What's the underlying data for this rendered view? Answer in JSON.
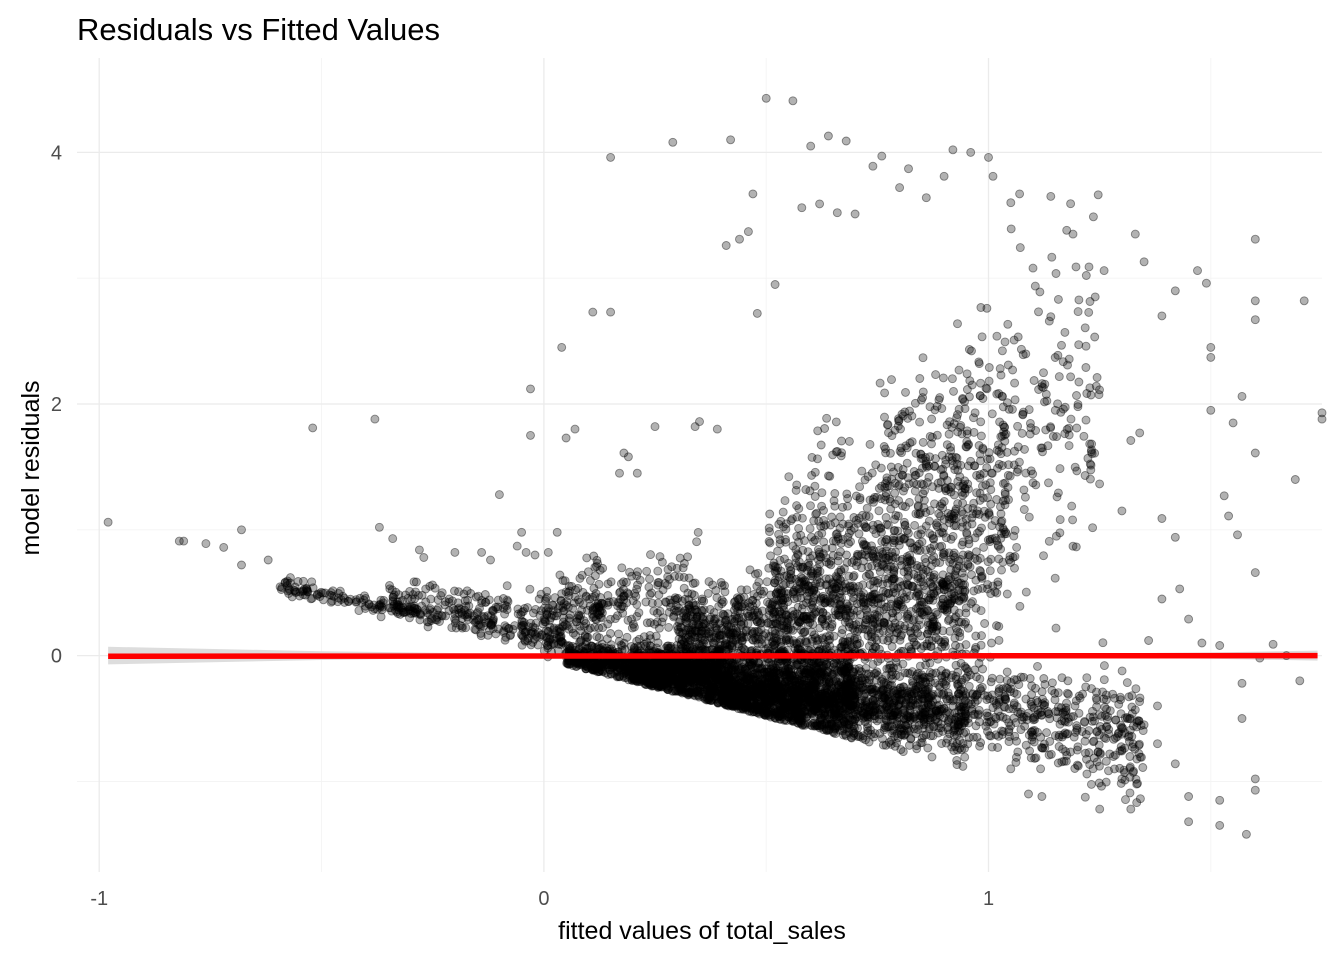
{
  "chart_data": {
    "type": "scatter",
    "title": "Residuals vs Fitted Values",
    "xlabel": "fitted values of total_sales",
    "ylabel": "model residuals",
    "xlim": [
      -1.05,
      1.75
    ],
    "ylim": [
      -1.72,
      4.75
    ],
    "x_ticks": [
      -1,
      0,
      1
    ],
    "y_ticks": [
      0,
      2,
      4
    ],
    "x_tick_labels": [
      "-1",
      "0",
      "1"
    ],
    "y_tick_labels": [
      "0",
      "2",
      "4"
    ],
    "x_minor": [
      -0.5,
      0.5,
      1.5
    ],
    "y_minor": [
      -1,
      1,
      3
    ],
    "grid": true,
    "legend": "none",
    "point_color": "#000000",
    "point_alpha": 0.3,
    "smooth_color": "#ff0000",
    "smooth_band_color": "#d9d9d9",
    "smooth_line": {
      "x": [
        -0.98,
        1.74
      ],
      "y": [
        -0.005,
        0.0
      ]
    },
    "smooth_band": {
      "x": [
        -0.98,
        -0.5,
        0.0,
        0.5,
        1.0,
        1.5,
        1.74
      ],
      "lower": [
        -0.07,
        -0.035,
        -0.01,
        -0.008,
        -0.01,
        -0.025,
        -0.04
      ],
      "upper": [
        0.07,
        0.035,
        0.01,
        0.008,
        0.01,
        0.025,
        0.04
      ]
    },
    "points": [
      [
        -0.98,
        1.06
      ],
      [
        -0.82,
        0.91
      ],
      [
        -0.81,
        0.91
      ],
      [
        -0.76,
        0.89
      ],
      [
        -0.72,
        0.86
      ],
      [
        -0.68,
        0.72
      ],
      [
        -0.68,
        1.0
      ],
      [
        -0.62,
        0.76
      ],
      [
        -0.57,
        0.62
      ],
      [
        -0.52,
        1.81
      ],
      [
        -0.38,
        1.88
      ],
      [
        -0.37,
        1.02
      ],
      [
        -0.34,
        0.93
      ],
      [
        -0.28,
        0.84
      ],
      [
        -0.27,
        0.78
      ],
      [
        -0.2,
        0.82
      ],
      [
        -0.14,
        0.82
      ],
      [
        -0.12,
        0.76
      ],
      [
        -0.06,
        0.87
      ],
      [
        -0.1,
        1.28
      ],
      [
        -0.05,
        0.98
      ],
      [
        -0.04,
        0.82
      ],
      [
        -0.02,
        0.8
      ],
      [
        0.01,
        0.82
      ],
      [
        0.03,
        0.98
      ],
      [
        -0.03,
        2.12
      ],
      [
        -0.03,
        1.75
      ],
      [
        0.04,
        2.45
      ],
      [
        0.05,
        1.73
      ],
      [
        0.07,
        1.8
      ],
      [
        0.11,
        2.73
      ],
      [
        0.15,
        3.96
      ],
      [
        0.15,
        2.73
      ],
      [
        0.18,
        1.61
      ],
      [
        0.19,
        1.58
      ],
      [
        0.17,
        1.45
      ],
      [
        0.21,
        1.45
      ],
      [
        0.25,
        1.82
      ],
      [
        0.29,
        4.08
      ],
      [
        0.34,
        1.82
      ],
      [
        0.35,
        1.86
      ],
      [
        0.39,
        1.8
      ],
      [
        0.41,
        3.26
      ],
      [
        0.42,
        4.1
      ],
      [
        0.44,
        3.31
      ],
      [
        0.46,
        3.37
      ],
      [
        0.47,
        3.67
      ],
      [
        0.48,
        2.72
      ],
      [
        0.5,
        4.43
      ],
      [
        0.52,
        2.95
      ],
      [
        0.56,
        4.41
      ],
      [
        0.58,
        3.56
      ],
      [
        0.6,
        4.05
      ],
      [
        0.62,
        3.59
      ],
      [
        0.64,
        4.13
      ],
      [
        0.66,
        3.52
      ],
      [
        0.68,
        4.09
      ],
      [
        0.7,
        3.51
      ],
      [
        0.74,
        3.89
      ],
      [
        0.76,
        3.97
      ],
      [
        0.8,
        3.72
      ],
      [
        0.82,
        3.87
      ],
      [
        0.86,
        3.64
      ],
      [
        0.9,
        3.81
      ],
      [
        0.92,
        4.02
      ],
      [
        0.96,
        4.0
      ],
      [
        1.0,
        3.96
      ],
      [
        1.01,
        3.81
      ],
      [
        1.05,
        3.6
      ],
      [
        1.07,
        3.67
      ],
      [
        1.1,
        3.08
      ],
      [
        1.14,
        3.65
      ],
      [
        1.19,
        3.35
      ],
      [
        1.26,
        3.06
      ],
      [
        1.33,
        3.35
      ],
      [
        1.35,
        3.13
      ],
      [
        1.39,
        2.7
      ],
      [
        1.42,
        2.9
      ],
      [
        1.47,
        3.06
      ],
      [
        1.49,
        2.96
      ],
      [
        1.6,
        3.31
      ],
      [
        1.6,
        2.82
      ],
      [
        1.6,
        2.67
      ],
      [
        1.71,
        2.82
      ],
      [
        1.75,
        1.93
      ],
      [
        1.75,
        1.88
      ],
      [
        1.69,
        1.4
      ],
      [
        1.6,
        1.61
      ],
      [
        1.57,
        2.06
      ],
      [
        1.55,
        1.85
      ],
      [
        1.5,
        1.95
      ],
      [
        1.5,
        2.45
      ],
      [
        1.5,
        2.37
      ],
      [
        1.53,
        1.27
      ],
      [
        1.54,
        1.11
      ],
      [
        1.56,
        0.96
      ],
      [
        1.6,
        0.66
      ],
      [
        1.43,
        0.53
      ],
      [
        1.42,
        0.94
      ],
      [
        1.39,
        1.09
      ],
      [
        1.34,
        1.77
      ],
      [
        1.32,
        1.71
      ],
      [
        1.3,
        1.15
      ],
      [
        1.61,
        -0.02
      ],
      [
        1.64,
        0.09
      ],
      [
        1.67,
        0.0
      ],
      [
        1.7,
        -0.2
      ],
      [
        1.57,
        -0.22
      ],
      [
        1.57,
        -0.5
      ],
      [
        1.58,
        -1.42
      ],
      [
        1.6,
        -0.98
      ],
      [
        1.6,
        -1.07
      ],
      [
        1.52,
        -1.15
      ],
      [
        1.52,
        -1.35
      ],
      [
        1.45,
        -1.12
      ],
      [
        1.45,
        -1.32
      ],
      [
        1.42,
        -0.86
      ],
      [
        1.38,
        -0.7
      ],
      [
        1.32,
        -1.22
      ],
      [
        1.3,
        -0.98
      ],
      [
        1.25,
        -1.22
      ],
      [
        1.2,
        -0.87
      ],
      [
        1.17,
        -0.84
      ],
      [
        1.12,
        -1.12
      ],
      [
        1.09,
        -1.1
      ],
      [
        1.05,
        -0.9
      ],
      [
        0.98,
        -0.72
      ],
      [
        1.48,
        0.1
      ],
      [
        1.52,
        0.08
      ],
      [
        1.36,
        0.12
      ],
      [
        1.39,
        0.45
      ],
      [
        1.45,
        0.29
      ],
      [
        1.38,
        -0.4
      ],
      [
        1.35,
        -0.55
      ],
      [
        1.27,
        -0.62
      ]
    ],
    "density_regions": [
      {
        "x": [
          0.05,
          0.4
        ],
        "y_center": [
          -0.02,
          -0.12
        ],
        "spread": [
          0.06,
          0.1
        ],
        "n": 800
      },
      {
        "x": [
          0.2,
          0.7
        ],
        "y_center": [
          -0.15,
          -0.3
        ],
        "spread": [
          0.1,
          0.2
        ],
        "n": 1400
      },
      {
        "x": [
          0.4,
          0.95
        ],
        "y_center": [
          -0.3,
          -0.45
        ],
        "spread": [
          0.1,
          0.18
        ],
        "n": 1300
      },
      {
        "x": [
          0.3,
          0.95
        ],
        "y_center": [
          0.15,
          0.4
        ],
        "spread": [
          0.15,
          0.35
        ],
        "n": 1100
      },
      {
        "x": [
          0.5,
          1.05
        ],
        "y_center": [
          0.7,
          1.1
        ],
        "spread": [
          0.3,
          0.6
        ],
        "n": 700
      },
      {
        "x": [
          0.75,
          1.25
        ],
        "y_center": [
          1.3,
          2.0
        ],
        "spread": [
          0.4,
          0.7
        ],
        "n": 400
      },
      {
        "x": [
          0.95,
          1.35
        ],
        "y_center": [
          -0.35,
          -0.7
        ],
        "spread": [
          0.15,
          0.25
        ],
        "n": 400
      },
      {
        "x": [
          -0.6,
          0.05
        ],
        "y_center": [
          0.55,
          0.12
        ],
        "spread": [
          0.03,
          0.05
        ],
        "n": 260
      },
      {
        "x": [
          -0.35,
          0.15
        ],
        "y_center": [
          0.45,
          0.35
        ],
        "spread": [
          0.08,
          0.12
        ],
        "n": 180
      },
      {
        "x": [
          0.0,
          0.35
        ],
        "y_center": [
          0.3,
          0.5
        ],
        "spread": [
          0.15,
          0.2
        ],
        "n": 250
      }
    ]
  }
}
